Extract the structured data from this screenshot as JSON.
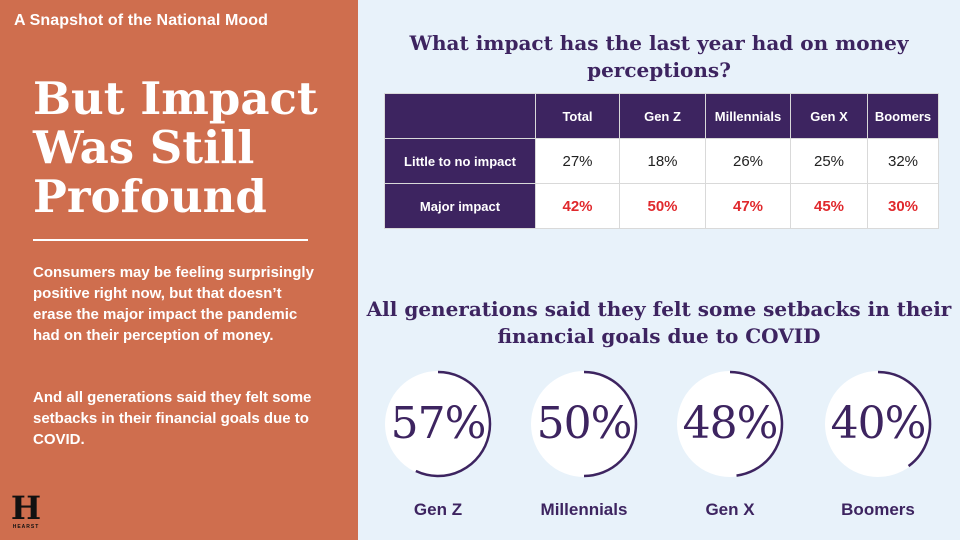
{
  "left": {
    "kicker": "A Snapshot of the National Mood",
    "headline_lines": [
      "But Impact",
      "Was Still",
      "Profound"
    ],
    "paragraph1": "Consumers may be feeling surprisingly positive right now, but that doesn’t erase the major impact the pandemic had on their perception of money.",
    "paragraph2": "And all generations said they felt some setbacks in their financial goals due to COVID.",
    "logo_mark": "H",
    "logo_word": "HEARST"
  },
  "colors": {
    "panel": "#cf6e4e",
    "purple": "#3d2460",
    "red": "#e0292d",
    "background": "#e8f2fa"
  },
  "chart_data": [
    {
      "type": "table",
      "title": "What impact has the last year had on money perceptions?",
      "columns": [
        "",
        "Total",
        "Gen Z",
        "Millennials",
        "Gen X",
        "Boomers"
      ],
      "rows": [
        {
          "label": "Little to no impact",
          "values": [
            "27%",
            "18%",
            "26%",
            "25%",
            "32%"
          ],
          "highlight": false
        },
        {
          "label": "Major impact",
          "values": [
            "42%",
            "50%",
            "47%",
            "45%",
            "30%"
          ],
          "highlight": true
        }
      ]
    },
    {
      "type": "pie",
      "subtype": "donut",
      "title": "All generations said they felt some setbacks in their financial goals due to COVID",
      "categories": [
        "Gen Z",
        "Millennials",
        "Gen X",
        "Boomers"
      ],
      "values": [
        57,
        50,
        48,
        40
      ],
      "value_labels": [
        "57%",
        "50%",
        "48%",
        "40%"
      ],
      "unit": "%",
      "max": 100
    }
  ]
}
